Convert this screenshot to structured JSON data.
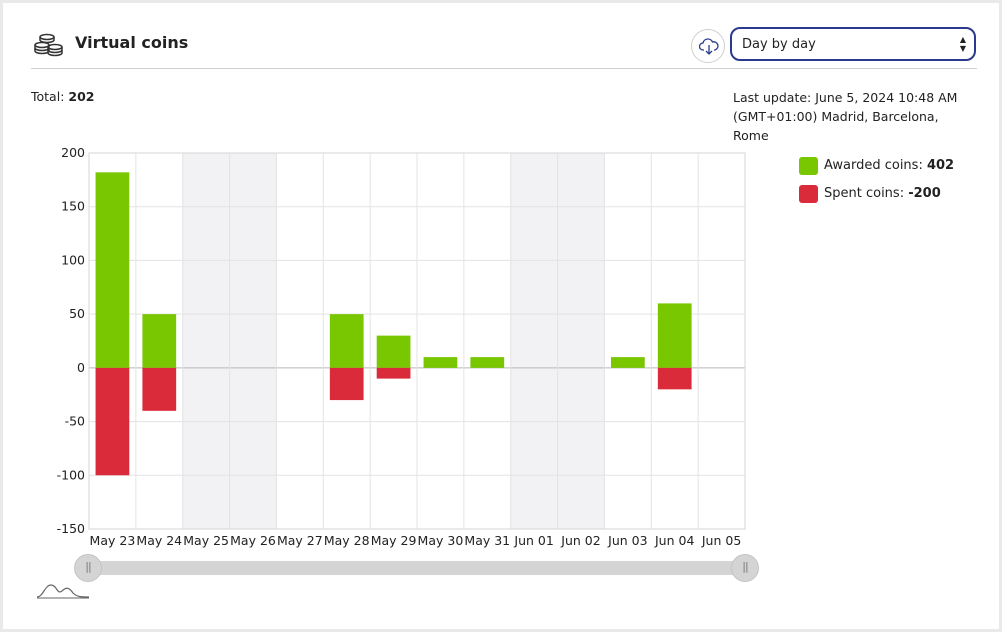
{
  "header": {
    "title": "Virtual coins",
    "coins_icon": "coins-stack-icon",
    "download_icon": "cloud-download-icon",
    "period_select": {
      "value": "Day by day"
    }
  },
  "summary": {
    "total_label": "Total:",
    "total_value": "202",
    "last_update_line1": "Last update: June 5, 2024 10:48 AM",
    "last_update_line2": "(GMT+01:00) Madrid, Barcelona, Rome"
  },
  "legend": [
    {
      "label": "Awarded coins:",
      "value": "402",
      "color": "#78c700"
    },
    {
      "label": "Spent coins:",
      "value": "-200",
      "color": "#d92b3a"
    }
  ],
  "chart_data": {
    "type": "bar",
    "categories": [
      "May 23",
      "May 24",
      "May 25",
      "May 26",
      "May 27",
      "May 28",
      "May 29",
      "May 30",
      "May 31",
      "Jun 01",
      "Jun 02",
      "Jun 03",
      "Jun 04",
      "Jun 05"
    ],
    "series": [
      {
        "name": "Awarded coins",
        "color": "#78c700",
        "values": [
          182,
          50,
          0,
          0,
          0,
          50,
          30,
          10,
          10,
          0,
          0,
          10,
          60,
          0
        ]
      },
      {
        "name": "Spent coins",
        "color": "#d92b3a",
        "values": [
          -100,
          -40,
          0,
          0,
          0,
          -30,
          -10,
          0,
          0,
          0,
          0,
          0,
          -20,
          0
        ]
      }
    ],
    "shaded_categories": [
      "May 25",
      "May 26",
      "Jun 01",
      "Jun 02"
    ],
    "ylim": [
      -150,
      200
    ],
    "yticks": [
      200,
      150,
      100,
      50,
      0,
      -50,
      -100,
      -150
    ],
    "stacked": true,
    "grid": true,
    "legend_position": "right"
  },
  "range_selector": {
    "icon": "sparkline-icon"
  }
}
